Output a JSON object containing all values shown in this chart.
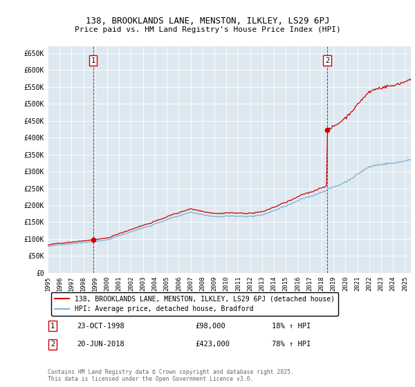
{
  "title1": "138, BROOKLANDS LANE, MENSTON, ILKLEY, LS29 6PJ",
  "title2": "Price paid vs. HM Land Registry's House Price Index (HPI)",
  "bg_color": "#dde8f0",
  "red_color": "#cc0000",
  "blue_color": "#7bafd4",
  "ylim": [
    0,
    670000
  ],
  "xlim_start": 1995.0,
  "xlim_end": 2025.5,
  "yticks": [
    0,
    50000,
    100000,
    150000,
    200000,
    250000,
    300000,
    350000,
    400000,
    450000,
    500000,
    550000,
    600000,
    650000
  ],
  "ytick_labels": [
    "£0",
    "£50K",
    "£100K",
    "£150K",
    "£200K",
    "£250K",
    "£300K",
    "£350K",
    "£400K",
    "£450K",
    "£500K",
    "£550K",
    "£600K",
    "£650K"
  ],
  "sale1_date": 1998.81,
  "sale1_price": 98000,
  "sale2_date": 2018.47,
  "sale2_price": 423000,
  "legend_line1": "138, BROOKLANDS LANE, MENSTON, ILKLEY, LS29 6PJ (detached house)",
  "legend_line2": "HPI: Average price, detached house, Bradford",
  "annotation1_label": "1",
  "annotation2_label": "2",
  "table_row1": [
    "1",
    "23-OCT-1998",
    "£98,000",
    "18% ↑ HPI"
  ],
  "table_row2": [
    "2",
    "20-JUN-2018",
    "£423,000",
    "78% ↑ HPI"
  ],
  "footer": "Contains HM Land Registry data © Crown copyright and database right 2025.\nThis data is licensed under the Open Government Licence v3.0."
}
